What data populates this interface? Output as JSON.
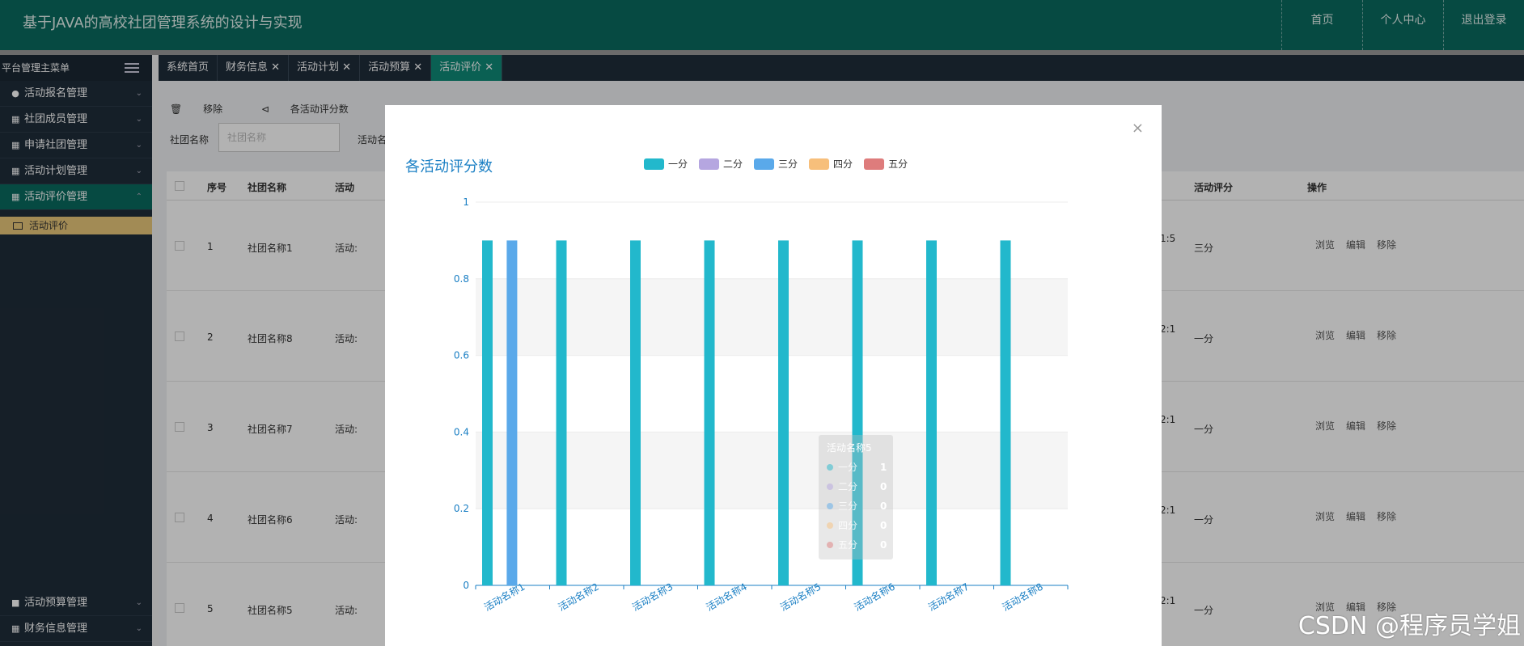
{
  "header": {
    "title": "基于JAVA的高校社团管理系统的设计与实现",
    "nav": [
      "首页",
      "个人中心",
      "退出登录"
    ]
  },
  "sidebar": {
    "title": "平台管理主菜单",
    "items": [
      {
        "label": "活动报名管理",
        "icon": "user-icon"
      },
      {
        "label": "社团成员管理",
        "icon": "grid-icon"
      },
      {
        "label": "申请社团管理",
        "icon": "grid-icon"
      },
      {
        "label": "活动计划管理",
        "icon": "grid-icon"
      },
      {
        "label": "活动评价管理",
        "icon": "grid-icon",
        "active": true
      }
    ],
    "sub_item": "活动评价",
    "bottom_items": [
      {
        "label": "活动预算管理",
        "icon": "file-icon"
      },
      {
        "label": "财务信息管理",
        "icon": "grid-icon"
      }
    ]
  },
  "tabs": [
    {
      "label": "系统首页",
      "closable": false
    },
    {
      "label": "财务信息 ✕",
      "closable": true
    },
    {
      "label": "活动计划 ✕",
      "closable": true
    },
    {
      "label": "活动预算 ✕",
      "closable": true
    },
    {
      "label": "活动评价 ✕",
      "closable": true,
      "active": true
    }
  ],
  "toolbar": {
    "remove": "移除",
    "stats": "各活动评分数"
  },
  "filter": {
    "label1": "社团名称",
    "placeholder": "社团名称",
    "label2": "活动名称"
  },
  "table": {
    "headers": {
      "seq": "序号",
      "club": "社团名称",
      "activity": "活动",
      "score": "活动评分",
      "ops": "操作"
    },
    "rows": [
      {
        "seq": "1",
        "club": "社团名称1",
        "activity": "活动:",
        "mid": "1:5",
        "score": "三分"
      },
      {
        "seq": "2",
        "club": "社团名称8",
        "activity": "活动:",
        "mid": "2:1",
        "score": "一分"
      },
      {
        "seq": "3",
        "club": "社团名称7",
        "activity": "活动:",
        "mid": "2:1",
        "score": "一分"
      },
      {
        "seq": "4",
        "club": "社团名称6",
        "activity": "活动:",
        "mid": "2:1",
        "score": "一分"
      },
      {
        "seq": "5",
        "club": "社团名称5",
        "activity": "活动:",
        "mid": "2:1",
        "score": "一分"
      }
    ],
    "ops": {
      "view": "浏览",
      "edit": "编辑",
      "remove": "移除"
    }
  },
  "modal": {
    "close": "×"
  },
  "chart_data": {
    "type": "bar",
    "title": "各活动评分数",
    "categories": [
      "活动名称1",
      "活动名称2",
      "活动名称3",
      "活动名称4",
      "活动名称5",
      "活动名称6",
      "活动名称7",
      "活动名称8"
    ],
    "series": [
      {
        "name": "一分",
        "color": "#22b8cc",
        "values": [
          1,
          1,
          1,
          1,
          1,
          1,
          1,
          1
        ]
      },
      {
        "name": "二分",
        "color": "#b5a6e0",
        "values": [
          0,
          0,
          0,
          0,
          0,
          0,
          0,
          0
        ]
      },
      {
        "name": "三分",
        "color": "#5aa9ea",
        "values": [
          1,
          0,
          0,
          0,
          0,
          0,
          0,
          0
        ]
      },
      {
        "name": "四分",
        "color": "#f7bf7b",
        "values": [
          0,
          0,
          0,
          0,
          0,
          0,
          0,
          0
        ]
      },
      {
        "name": "五分",
        "color": "#de7c7c",
        "values": [
          0,
          0,
          0,
          0,
          0,
          0,
          0,
          0
        ]
      }
    ],
    "yticks": [
      "0",
      "0.2",
      "0.4",
      "0.6",
      "0.8",
      "1"
    ],
    "ylim": [
      0,
      1
    ],
    "legend": "top",
    "tooltip": {
      "title": "活动名称5",
      "rows": [
        {
          "name": "一分",
          "value": "1"
        },
        {
          "name": "二分",
          "value": "0"
        },
        {
          "name": "三分",
          "value": "0"
        },
        {
          "name": "四分",
          "value": "0"
        },
        {
          "name": "五分",
          "value": "0"
        }
      ]
    }
  },
  "watermark": "CSDN @程序员学姐"
}
